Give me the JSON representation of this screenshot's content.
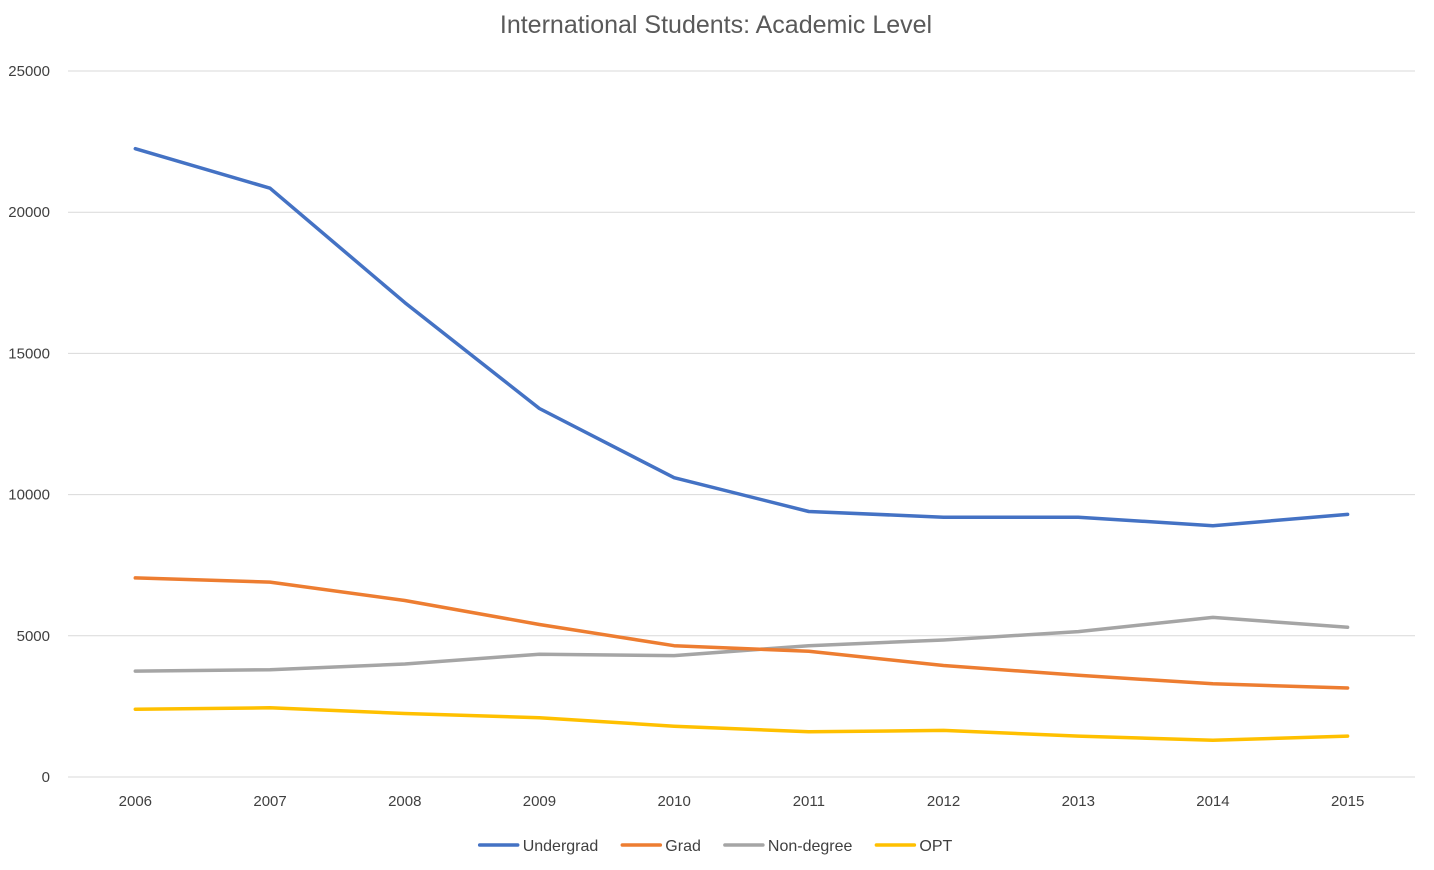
{
  "chart_data": {
    "type": "line",
    "title": "International Students: Academic Level",
    "xlabel": "",
    "ylabel": "",
    "categories": [
      "2006",
      "2007",
      "2008",
      "2009",
      "2010",
      "2011",
      "2012",
      "2013",
      "2014",
      "2015"
    ],
    "ylim": [
      0,
      25000
    ],
    "yticks": [
      0,
      5000,
      10000,
      15000,
      20000,
      25000
    ],
    "ytick_labels": [
      "0",
      "5000",
      "10000",
      "15000",
      "20000",
      "25000"
    ],
    "grid": true,
    "legend_position": "bottom",
    "series": [
      {
        "name": "Undergrad",
        "color": "#4472c4",
        "values": [
          22250,
          20850,
          16800,
          13050,
          10600,
          9400,
          9200,
          9200,
          8900,
          9300
        ]
      },
      {
        "name": "Grad",
        "color": "#ed7d31",
        "values": [
          7050,
          6900,
          6250,
          5400,
          4650,
          4450,
          3950,
          3600,
          3300,
          3150
        ]
      },
      {
        "name": "Non-degree",
        "color": "#a5a5a5",
        "values": [
          3750,
          3800,
          4000,
          4350,
          4300,
          4650,
          4850,
          5150,
          5650,
          5300
        ]
      },
      {
        "name": "OPT",
        "color": "#ffc000",
        "values": [
          2400,
          2450,
          2250,
          2100,
          1800,
          1600,
          1650,
          1450,
          1300,
          1450
        ]
      }
    ]
  }
}
